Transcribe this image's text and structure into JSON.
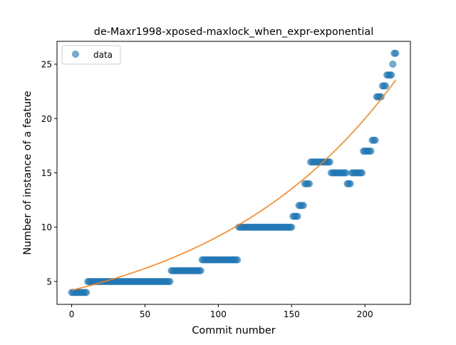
{
  "chart_data": {
    "type": "scatter",
    "title": "de-Maxr1998-xposed-maxlock_when_expr-exponential",
    "xlabel": "Commit number",
    "ylabel": "Number of instance of a feature",
    "xlim": [
      -10,
      231
    ],
    "ylim": [
      2.9,
      27.1
    ],
    "xticks": [
      0,
      50,
      100,
      150,
      200
    ],
    "yticks": [
      5,
      10,
      15,
      20,
      25
    ],
    "xtick_labels": [
      "0",
      "50",
      "100",
      "150",
      "200"
    ],
    "ytick_labels": [
      "5",
      "10",
      "15",
      "20",
      "25"
    ],
    "legend": {
      "position": "upper-left",
      "entries": [
        "data"
      ]
    },
    "series": [
      {
        "name": "data",
        "kind": "scatter",
        "color": "#1f77b4",
        "alpha": 0.6,
        "steps": [
          {
            "x_from": 0,
            "x_to": 10,
            "y": 4
          },
          {
            "x_from": 11,
            "x_to": 67,
            "y": 5
          },
          {
            "x_from": 68,
            "x_to": 88,
            "y": 6
          },
          {
            "x_from": 89,
            "x_to": 113,
            "y": 7
          },
          {
            "x_from": 114,
            "x_to": 150,
            "y": 10
          },
          {
            "x_from": 151,
            "x_to": 154,
            "y": 11
          },
          {
            "x_from": 155,
            "x_to": 158,
            "y": 12
          },
          {
            "x_from": 159,
            "x_to": 162,
            "y": 14
          },
          {
            "x_from": 163,
            "x_to": 176,
            "y": 16
          },
          {
            "x_from": 177,
            "x_to": 187,
            "y": 15
          },
          {
            "x_from": 188,
            "x_to": 190,
            "y": 14
          },
          {
            "x_from": 191,
            "x_to": 198,
            "y": 15
          },
          {
            "x_from": 199,
            "x_to": 204,
            "y": 17
          },
          {
            "x_from": 205,
            "x_to": 207,
            "y": 18
          },
          {
            "x_from": 208,
            "x_to": 211,
            "y": 22
          },
          {
            "x_from": 212,
            "x_to": 214,
            "y": 23
          },
          {
            "x_from": 215,
            "x_to": 218,
            "y": 24
          },
          {
            "x_from": 219,
            "x_to": 219,
            "y": 25
          },
          {
            "x_from": 220,
            "x_to": 221,
            "y": 26
          }
        ]
      },
      {
        "name": "",
        "kind": "line",
        "color": "#ff7f0e",
        "curve": {
          "model": "exponential",
          "a": 4.2,
          "b": 0.0078,
          "x_from": 0,
          "x_to": 221
        }
      }
    ]
  }
}
